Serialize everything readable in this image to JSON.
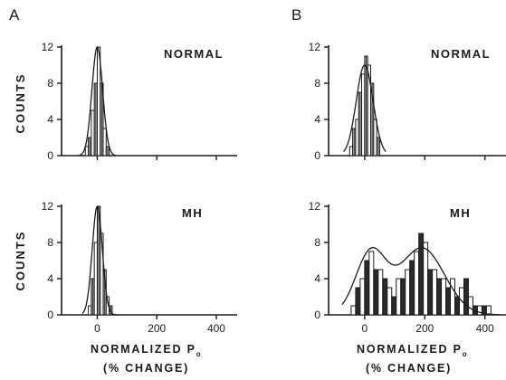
{
  "figure": {
    "panel_a_letter": "A",
    "panel_b_letter": "B",
    "counts_label": "COUNTS",
    "xlabel_line1": "NORMALIZED P",
    "xlabel_sub": "o",
    "xlabel_line2": "(% CHANGE)"
  },
  "chart_data": [
    {
      "type": "bar",
      "panel": "A",
      "position": "top",
      "annotation": "NORMAL",
      "ylabel": "COUNTS",
      "xlabel": "NORMALIZED Po (% CHANGE)",
      "bin_width": 10,
      "x_bins": [
        -40,
        -30,
        -20,
        -10,
        0,
        10,
        20,
        30
      ],
      "values": [
        1,
        2,
        5,
        8,
        12,
        8,
        3,
        1
      ],
      "fit": {
        "kind": "gaussian",
        "mean": 0,
        "sd": 18,
        "peak": 12
      },
      "xlim": [
        -120,
        470
      ],
      "ylim": [
        0,
        12
      ],
      "xticks": [],
      "yticks": [
        0,
        4,
        8,
        12
      ]
    },
    {
      "type": "bar",
      "panel": "A",
      "position": "bottom",
      "annotation": "MH",
      "ylabel": "COUNTS",
      "xlabel": "NORMALIZED Po (% CHANGE)",
      "bin_width": 10,
      "x_bins": [
        -30,
        -20,
        -10,
        0,
        10,
        20,
        30,
        40
      ],
      "values": [
        1,
        4,
        8,
        12,
        9,
        5,
        2,
        1
      ],
      "fit": {
        "kind": "gaussian",
        "mean": 0,
        "sd": 17,
        "peak": 12
      },
      "xlim": [
        -120,
        470
      ],
      "ylim": [
        0,
        12
      ],
      "xticks": [
        0,
        200,
        400
      ],
      "yticks": [
        0,
        4,
        8,
        12
      ]
    },
    {
      "type": "bar",
      "panel": "B",
      "position": "top",
      "annotation": "NORMAL",
      "ylabel": "COUNTS",
      "xlabel": "NORMALIZED Po (% CHANGE)",
      "bin_width": 10,
      "x_bins": [
        -50,
        -40,
        -30,
        -20,
        -10,
        0,
        10,
        20,
        30,
        40
      ],
      "values": [
        1,
        3,
        4,
        7,
        9,
        11,
        10,
        8,
        4,
        2
      ],
      "fit": {
        "kind": "gaussian",
        "mean": 0,
        "sd": 28,
        "peak": 10
      },
      "xlim": [
        -120,
        470
      ],
      "ylim": [
        0,
        12
      ],
      "xticks": [],
      "yticks": [
        0,
        4,
        8,
        12
      ]
    },
    {
      "type": "bar",
      "panel": "B",
      "position": "bottom",
      "annotation": "MH",
      "ylabel": "COUNTS",
      "xlabel": "NORMALIZED Po (% CHANGE)",
      "bin_width": 15,
      "x_bins": [
        -45,
        -30,
        -15,
        0,
        15,
        30,
        45,
        60,
        75,
        90,
        105,
        120,
        135,
        150,
        165,
        180,
        195,
        210,
        225,
        240,
        255,
        270,
        285,
        300,
        315,
        330,
        345,
        360,
        375,
        390,
        405
      ],
      "values": [
        1,
        3,
        4,
        6,
        7,
        5,
        5,
        4,
        3,
        2,
        4,
        4,
        5,
        6,
        7,
        9,
        8,
        5,
        5,
        4,
        4,
        3,
        4,
        2,
        3,
        4,
        2,
        1,
        1,
        1,
        1
      ],
      "fit": {
        "kind": "bimodal",
        "components": [
          {
            "mean": 20,
            "sd": 50,
            "peak": 6.8
          },
          {
            "mean": 190,
            "sd": 75,
            "peak": 7.4
          }
        ]
      },
      "xlim": [
        -120,
        470
      ],
      "ylim": [
        0,
        12
      ],
      "xticks": [
        0,
        200,
        400
      ],
      "yticks": [
        0,
        4,
        8,
        12
      ]
    }
  ]
}
